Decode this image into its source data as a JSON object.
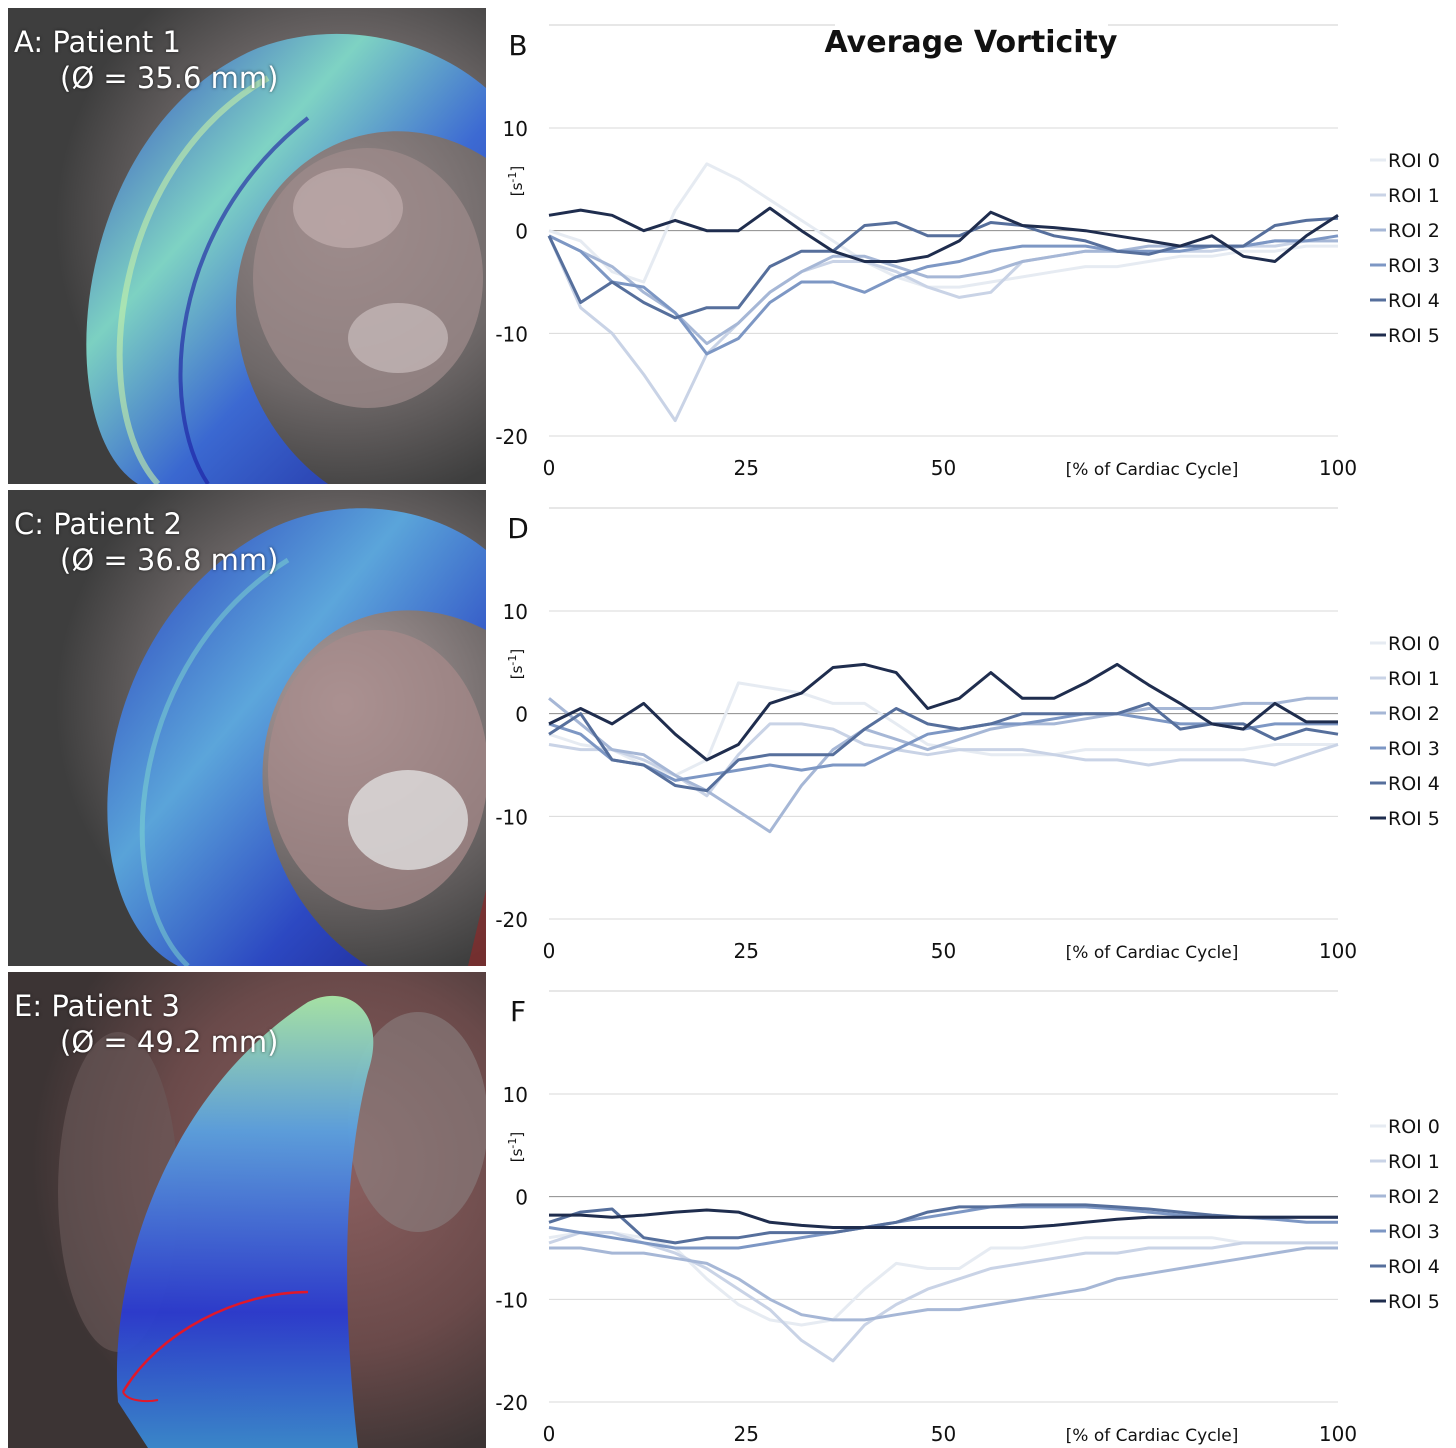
{
  "figure_title": "Average Vorticity",
  "images": [
    {
      "letter": "A:",
      "patient": "Patient 1",
      "diameter": "(Ø = 35.6 mm)"
    },
    {
      "letter": "C:",
      "patient": "Patient 2",
      "diameter": "(Ø = 36.8 mm)"
    },
    {
      "letter": "E:",
      "patient": "Patient 3",
      "diameter": "(Ø = 49.2 mm)"
    }
  ],
  "colors": {
    "ROI 0": "#e6ebf2",
    "ROI 1": "#c9d3e6",
    "ROI 2": "#a6b7d6",
    "ROI 3": "#7d97c4",
    "ROI 4": "#566f9c",
    "ROI 5": "#1f2d4e",
    "grid": "#d9d9d9"
  },
  "chart_data": [
    {
      "type": "line",
      "panel": "B",
      "title": "Average Vorticity",
      "ylabel": "[s-1]",
      "ylabel_main": "[s",
      "ylabel_sup": "-1",
      "ylabel_end": "]",
      "xlabel": "[% of Cardiac Cycle]",
      "ylim": [
        -20,
        10
      ],
      "xlim": [
        0,
        100
      ],
      "yticks": [
        "10",
        "0",
        "-10",
        "-20"
      ],
      "xticks": [
        "0",
        "25",
        "50",
        "100"
      ],
      "grid": "horizontal",
      "legend": "right",
      "x": [
        0,
        4,
        8,
        12,
        16,
        20,
        24,
        28,
        32,
        36,
        40,
        44,
        48,
        52,
        56,
        60,
        64,
        68,
        72,
        76,
        80,
        84,
        88,
        92,
        96,
        100
      ],
      "series": [
        {
          "name": "ROI 0",
          "values": [
            0,
            -1,
            -4,
            -5,
            2,
            6.5,
            5,
            3,
            1,
            -1,
            -3,
            -4.5,
            -5.5,
            -5.5,
            -5,
            -4.5,
            -4,
            -3.5,
            -3.5,
            -3,
            -2.5,
            -2.5,
            -2,
            -2,
            -1.5,
            -1.5
          ]
        },
        {
          "name": "ROI 1",
          "values": [
            -0.5,
            -7.5,
            -10,
            -14,
            -18.5,
            -12,
            -9,
            -6,
            -4,
            -3,
            -3,
            -4,
            -5.5,
            -6.5,
            -6,
            -3,
            -2.5,
            -2,
            -2,
            -2,
            -2,
            -2,
            -1.5,
            -1.5,
            -1,
            -1
          ]
        },
        {
          "name": "ROI 2",
          "values": [
            -0.5,
            -2,
            -3.5,
            -6,
            -8,
            -11,
            -9,
            -6,
            -4,
            -2.5,
            -2.5,
            -3.5,
            -4.5,
            -4.5,
            -4,
            -3,
            -2.5,
            -2,
            -2,
            -1.5,
            -1.5,
            -1.5,
            -1.5,
            -1,
            -1,
            -1
          ]
        },
        {
          "name": "ROI 3",
          "values": [
            -0.5,
            -2,
            -5,
            -5.5,
            -8,
            -12,
            -10.5,
            -7,
            -5,
            -5,
            -6,
            -4.5,
            -3.5,
            -3,
            -2,
            -1.5,
            -1.5,
            -1.5,
            -2,
            -2,
            -2,
            -1.5,
            -1.5,
            -1,
            -1,
            -0.5
          ]
        },
        {
          "name": "ROI 4",
          "values": [
            -0.5,
            -7,
            -5,
            -7,
            -8.5,
            -7.5,
            -7.5,
            -3.5,
            -2,
            -2,
            0.5,
            0.8,
            -0.5,
            -0.5,
            0.8,
            0.5,
            -0.5,
            -1,
            -2,
            -2.3,
            -1.5,
            -1.5,
            -1.5,
            0.5,
            1,
            1.2
          ]
        },
        {
          "name": "ROI 5",
          "values": [
            1.5,
            2,
            1.5,
            0,
            1,
            0,
            0,
            2.2,
            0,
            -2,
            -3,
            -3,
            -2.5,
            -1,
            1.8,
            0.5,
            0.3,
            0,
            -0.5,
            -1,
            -1.5,
            -0.5,
            -2.5,
            -3,
            -0.5,
            1.5
          ]
        }
      ]
    },
    {
      "type": "line",
      "panel": "D",
      "title": "",
      "ylabel": "[s-1]",
      "ylabel_main": "[s",
      "ylabel_sup": "-1",
      "ylabel_end": "]",
      "xlabel": "[% of Cardiac Cycle]",
      "ylim": [
        -20,
        10
      ],
      "xlim": [
        0,
        100
      ],
      "yticks": [
        "10",
        "0",
        "-10",
        "-20"
      ],
      "xticks": [
        "0",
        "25",
        "50",
        "100"
      ],
      "grid": "horizontal",
      "legend": "right",
      "x": [
        0,
        4,
        8,
        12,
        16,
        20,
        24,
        28,
        32,
        36,
        40,
        44,
        48,
        52,
        56,
        60,
        64,
        68,
        72,
        76,
        80,
        84,
        88,
        92,
        96,
        100
      ],
      "series": [
        {
          "name": "ROI 0",
          "values": [
            -2,
            -3,
            -3.5,
            -5,
            -6,
            -4.5,
            3,
            2.5,
            2,
            1,
            1,
            -1,
            -3,
            -3.5,
            -4,
            -4,
            -4,
            -3.5,
            -3.5,
            -3.5,
            -3.5,
            -3.5,
            -3.5,
            -3,
            -3,
            -3
          ]
        },
        {
          "name": "ROI 1",
          "values": [
            -3,
            -3.5,
            -3.5,
            -4.5,
            -6,
            -8,
            -4,
            -1,
            -1,
            -1.5,
            -3,
            -3.5,
            -4,
            -3.5,
            -3.5,
            -3.5,
            -4,
            -4.5,
            -4.5,
            -5,
            -4.5,
            -4.5,
            -4.5,
            -5,
            -4,
            -3
          ]
        },
        {
          "name": "ROI 2",
          "values": [
            1.5,
            -1,
            -3.5,
            -4,
            -6,
            -7.5,
            -9.5,
            -11.5,
            -7,
            -3.5,
            -1.5,
            -2.5,
            -3.5,
            -2.5,
            -1.5,
            -1,
            -1,
            -0.5,
            0,
            0.5,
            0.5,
            0.5,
            1,
            1,
            1.5,
            1.5
          ]
        },
        {
          "name": "ROI 3",
          "values": [
            -1,
            -2,
            -4.5,
            -5,
            -6.5,
            -6,
            -5.5,
            -5,
            -5.5,
            -5,
            -5,
            -3.5,
            -2,
            -1.5,
            -1,
            -1,
            -0.5,
            0,
            0,
            -0.5,
            -1,
            -1,
            -1.5,
            -1,
            -1,
            -1
          ]
        },
        {
          "name": "ROI 4",
          "values": [
            -2,
            0,
            -4.5,
            -5,
            -7,
            -7.5,
            -4.5,
            -4,
            -4,
            -4,
            -1.5,
            0.5,
            -1,
            -1.5,
            -1,
            0,
            0,
            0,
            0,
            1,
            -1.5,
            -1,
            -1,
            -2.5,
            -1.5,
            -2
          ]
        },
        {
          "name": "ROI 5",
          "values": [
            -1,
            0.5,
            -1,
            1,
            -2,
            -4.5,
            -3,
            1,
            2,
            4.5,
            4.8,
            4,
            0.5,
            1.5,
            4,
            1.5,
            1.5,
            3,
            4.8,
            2.8,
            1,
            -1,
            -1.5,
            1,
            -0.8,
            -0.8
          ]
        }
      ]
    },
    {
      "type": "line",
      "panel": "F",
      "title": "",
      "ylabel": "[s-1]",
      "ylabel_main": "[s",
      "ylabel_sup": "-1",
      "ylabel_end": "]",
      "xlabel": "[% of Cardiac Cycle]",
      "ylim": [
        -20,
        10
      ],
      "xlim": [
        0,
        100
      ],
      "yticks": [
        "10",
        "0",
        "-10",
        "-20"
      ],
      "xticks": [
        "0",
        "25",
        "50",
        "100"
      ],
      "grid": "horizontal",
      "legend": "right",
      "x": [
        0,
        4,
        8,
        12,
        16,
        20,
        24,
        28,
        32,
        36,
        40,
        44,
        48,
        52,
        56,
        60,
        64,
        68,
        72,
        76,
        80,
        84,
        88,
        92,
        96,
        100
      ],
      "series": [
        {
          "name": "ROI 0",
          "values": [
            -4,
            -3.5,
            -3.5,
            -4,
            -5,
            -8,
            -10.5,
            -12,
            -12.5,
            -12,
            -9,
            -6.5,
            -7,
            -7,
            -5,
            -5,
            -4.5,
            -4,
            -4,
            -4,
            -4,
            -4,
            -4.5,
            -4.5,
            -4.5,
            -4.5
          ]
        },
        {
          "name": "ROI 1",
          "values": [
            -4.5,
            -3.5,
            -3.5,
            -4.5,
            -5.5,
            -7,
            -9,
            -11,
            -14,
            -16,
            -12.5,
            -10.5,
            -9,
            -8,
            -7,
            -6.5,
            -6,
            -5.5,
            -5.5,
            -5,
            -5,
            -5,
            -4.5,
            -4.5,
            -4.5,
            -4.5
          ]
        },
        {
          "name": "ROI 2",
          "values": [
            -5,
            -5,
            -5.5,
            -5.5,
            -6,
            -6.5,
            -8,
            -10,
            -11.5,
            -12,
            -12,
            -11.5,
            -11,
            -11,
            -10.5,
            -10,
            -9.5,
            -9,
            -8,
            -7.5,
            -7,
            -6.5,
            -6,
            -5.5,
            -5,
            -5
          ]
        },
        {
          "name": "ROI 3",
          "values": [
            -3,
            -3.5,
            -4,
            -4.5,
            -5,
            -5,
            -5,
            -4.5,
            -4,
            -3.5,
            -3,
            -2.5,
            -2,
            -1.5,
            -1,
            -1,
            -1,
            -1,
            -1.2,
            -1.5,
            -1.8,
            -2,
            -2,
            -2.2,
            -2.5,
            -2.5
          ]
        },
        {
          "name": "ROI 4",
          "values": [
            -2.5,
            -1.5,
            -1.2,
            -4,
            -4.5,
            -4,
            -4,
            -3.5,
            -3.5,
            -3.5,
            -3,
            -2.5,
            -1.5,
            -1,
            -1,
            -0.8,
            -0.8,
            -0.8,
            -1,
            -1.2,
            -1.5,
            -1.8,
            -2,
            -2,
            -2,
            -2
          ]
        },
        {
          "name": "ROI 5",
          "values": [
            -1.8,
            -1.8,
            -2,
            -1.8,
            -1.5,
            -1.3,
            -1.5,
            -2.5,
            -2.8,
            -3,
            -3,
            -3,
            -3,
            -3,
            -3,
            -3,
            -2.8,
            -2.5,
            -2.2,
            -2,
            -2,
            -2,
            -2,
            -2,
            -2,
            -2
          ]
        }
      ]
    }
  ]
}
